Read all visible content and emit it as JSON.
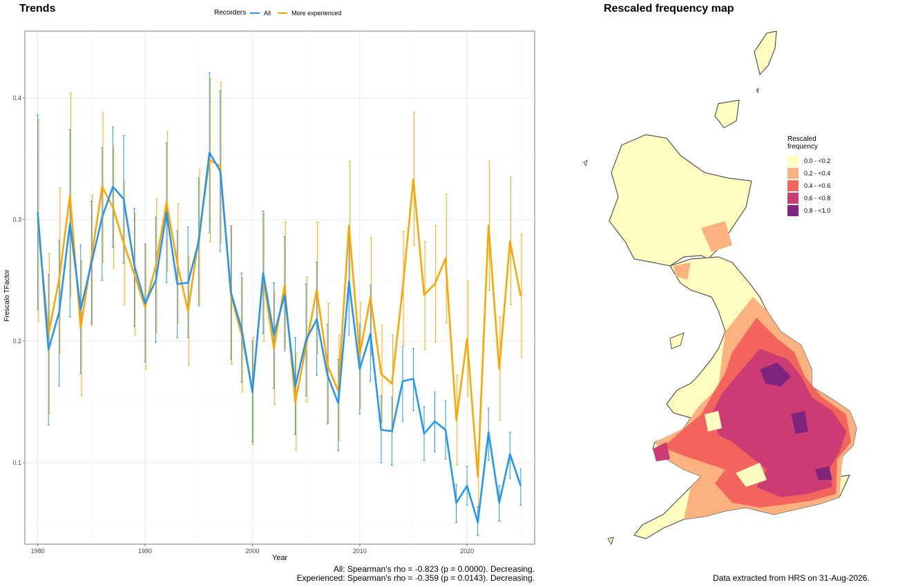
{
  "trends_title": "Trends",
  "map_title": "Rescaled frequency map",
  "legend": {
    "title": "Recorders",
    "items": [
      {
        "label": "All",
        "color": "#2196F3"
      },
      {
        "label": "More experienced",
        "color": "#FFA500"
      }
    ]
  },
  "stats": {
    "line1": "All: Spearman's rho = -0.823 (p = 0.0000). Decreasing.",
    "line2": "Experienced: Spearman's rho = -0.359 (p = 0.0143). Decreasing."
  },
  "extracted": "Data extracted from HRS on 31-Aug-2026.",
  "map_legend": {
    "title_line1": "Rescaled",
    "title_line2": "frequency",
    "items": [
      {
        "label": "0.0 - <0.2",
        "color": "#FFFCC0"
      },
      {
        "label": "0.2 - <0.4",
        "color": "#FCB27E"
      },
      {
        "label": "0.4 - <0.6",
        "color": "#F2645C"
      },
      {
        "label": "0.6 - <0.8",
        "color": "#CC3C74"
      },
      {
        "label": "0.8 - <1.0",
        "color": "#7E2580"
      }
    ]
  },
  "chart_data": {
    "type": "line",
    "xlabel": "Year",
    "ylabel": "Frescalo TFactor",
    "xlim": [
      1978.8,
      2026.3
    ],
    "ylim": [
      0.033,
      0.455
    ],
    "xticks": [
      1980,
      1990,
      2000,
      2010,
      2020
    ],
    "yticks": [
      0.1,
      0.2,
      0.3,
      0.4
    ],
    "grid": true,
    "legend_position": "top",
    "x": [
      1980,
      1981,
      1982,
      1983,
      1984,
      1985,
      1986,
      1987,
      1988,
      1989,
      1990,
      1991,
      1992,
      1993,
      1994,
      1995,
      1996,
      1997,
      1998,
      1999,
      2000,
      2001,
      2002,
      2003,
      2004,
      2005,
      2006,
      2007,
      2008,
      2009,
      2010,
      2011,
      2012,
      2013,
      2014,
      2015,
      2016,
      2017,
      2018,
      2019,
      2020,
      2021,
      2022,
      2023,
      2024,
      2025
    ],
    "series": [
      {
        "name": "All",
        "color": "#2196F3",
        "values": [
          0.306,
          0.193,
          0.224,
          0.297,
          0.226,
          0.264,
          0.302,
          0.327,
          0.317,
          0.262,
          0.231,
          0.25,
          0.306,
          0.247,
          0.248,
          0.282,
          0.355,
          0.34,
          0.24,
          0.21,
          0.158,
          0.256,
          0.205,
          0.238,
          0.163,
          0.201,
          0.218,
          0.172,
          0.149,
          0.249,
          0.177,
          0.206,
          0.127,
          0.126,
          0.167,
          0.169,
          0.124,
          0.134,
          0.127,
          0.067,
          0.081,
          0.051,
          0.125,
          0.067,
          0.107,
          0.081
        ],
        "lower": [
          0.226,
          0.131,
          0.163,
          0.22,
          0.173,
          0.214,
          0.25,
          0.277,
          0.264,
          0.212,
          0.183,
          0.199,
          0.248,
          0.203,
          0.203,
          0.229,
          0.289,
          0.274,
          0.185,
          0.166,
          0.117,
          0.206,
          0.161,
          0.192,
          0.123,
          0.155,
          0.172,
          0.132,
          0.11,
          0.205,
          0.14,
          0.167,
          0.1,
          0.098,
          0.134,
          0.143,
          0.102,
          0.109,
          0.103,
          0.051,
          0.065,
          0.04,
          0.102,
          0.052,
          0.087,
          0.065
        ],
        "upper": [
          0.386,
          0.255,
          0.283,
          0.374,
          0.279,
          0.315,
          0.359,
          0.376,
          0.369,
          0.309,
          0.28,
          0.302,
          0.363,
          0.291,
          0.294,
          0.334,
          0.421,
          0.406,
          0.295,
          0.256,
          0.2,
          0.307,
          0.248,
          0.286,
          0.203,
          0.247,
          0.265,
          0.214,
          0.185,
          0.292,
          0.214,
          0.246,
          0.155,
          0.154,
          0.196,
          0.194,
          0.146,
          0.158,
          0.151,
          0.082,
          0.097,
          0.064,
          0.145,
          0.081,
          0.125,
          0.095
        ]
      },
      {
        "name": "More experienced",
        "color": "#FFA500",
        "values": [
          0.299,
          0.206,
          0.251,
          0.32,
          0.211,
          0.268,
          0.327,
          0.31,
          0.281,
          0.255,
          0.228,
          0.262,
          0.314,
          0.264,
          0.225,
          0.285,
          0.349,
          0.344,
          0.238,
          0.205,
          0.16,
          0.253,
          0.194,
          0.246,
          0.15,
          0.196,
          0.242,
          0.18,
          0.159,
          0.295,
          0.189,
          0.236,
          0.173,
          0.165,
          0.243,
          0.333,
          0.238,
          0.247,
          0.268,
          0.135,
          0.202,
          0.089,
          0.295,
          0.177,
          0.282,
          0.237
        ],
        "lower": [
          0.216,
          0.14,
          0.19,
          0.237,
          0.155,
          0.213,
          0.265,
          0.26,
          0.23,
          0.205,
          0.177,
          0.207,
          0.257,
          0.215,
          0.18,
          0.23,
          0.282,
          0.281,
          0.181,
          0.158,
          0.115,
          0.2,
          0.148,
          0.194,
          0.111,
          0.15,
          0.19,
          0.133,
          0.118,
          0.243,
          0.145,
          0.188,
          0.133,
          0.125,
          0.196,
          0.279,
          0.193,
          0.199,
          0.215,
          0.098,
          0.155,
          0.06,
          0.242,
          0.135,
          0.23,
          0.187
        ],
        "upper": [
          0.382,
          0.272,
          0.326,
          0.404,
          0.266,
          0.32,
          0.388,
          0.36,
          0.331,
          0.305,
          0.279,
          0.317,
          0.372,
          0.313,
          0.27,
          0.341,
          0.416,
          0.413,
          0.295,
          0.252,
          0.203,
          0.305,
          0.24,
          0.298,
          0.19,
          0.253,
          0.298,
          0.231,
          0.205,
          0.348,
          0.232,
          0.285,
          0.213,
          0.205,
          0.29,
          0.388,
          0.282,
          0.295,
          0.321,
          0.172,
          0.249,
          0.116,
          0.348,
          0.22,
          0.335,
          0.288
        ]
      }
    ]
  }
}
